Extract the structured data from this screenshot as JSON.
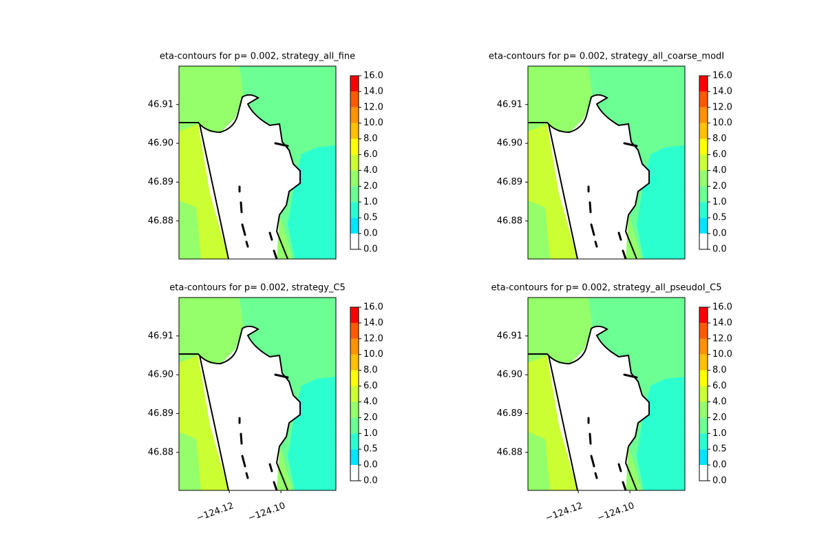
{
  "chart_data": [
    {
      "type": "contour",
      "title": "eta-contours for p= 0.002, strategy_all_fine",
      "xlim": [
        -124.1395,
        -124.0787
      ],
      "ylim": [
        46.8702,
        46.9199
      ],
      "yticks": [
        46.88,
        46.89,
        {
          "value": 46.9,
          "label": "46.90"
        },
        46.91
      ],
      "colorbar_ticks": [
        {
          "value": 0,
          "label": "0.0"
        },
        {
          "value": 0,
          "label": "0.0"
        },
        0.5,
        {
          "value": 1,
          "label": "1.0"
        },
        {
          "value": 2,
          "label": "2.0"
        },
        {
          "value": 4,
          "label": "4.0"
        },
        {
          "value": 6,
          "label": "6.0"
        },
        {
          "value": 8,
          "label": "8.0"
        },
        {
          "value": 10,
          "label": "10.0"
        },
        {
          "value": 12,
          "label": "12.0"
        },
        {
          "value": 14,
          "label": "14.0"
        },
        {
          "value": 16,
          "label": "16.0"
        }
      ],
      "colorbar_colors": [
        "#ffffff",
        "#00e5ff",
        "#2bffd0",
        "#6bff94",
        "#94ff6b",
        "#ccff33",
        "#ffff00",
        "#ffc000",
        "#ff9200",
        "#ff5a00",
        "#ff0000"
      ]
    },
    {
      "type": "contour",
      "title": "eta-contours for p= 0.002, strategy_all_coarse_modI",
      "xlim": [
        -124.1395,
        -124.0787
      ],
      "ylim": [
        46.8702,
        46.9199
      ],
      "yticks": [
        46.88,
        46.89,
        {
          "value": 46.9,
          "label": "46.90"
        },
        46.91
      ],
      "colorbar_ticks": [
        {
          "value": 0,
          "label": "0.0"
        },
        {
          "value": 0,
          "label": "0.0"
        },
        0.5,
        {
          "value": 1,
          "label": "1.0"
        },
        {
          "value": 2,
          "label": "2.0"
        },
        {
          "value": 4,
          "label": "4.0"
        },
        {
          "value": 6,
          "label": "6.0"
        },
        {
          "value": 8,
          "label": "8.0"
        },
        {
          "value": 10,
          "label": "10.0"
        },
        {
          "value": 12,
          "label": "12.0"
        },
        {
          "value": 14,
          "label": "14.0"
        },
        {
          "value": 16,
          "label": "16.0"
        }
      ],
      "colorbar_colors": [
        "#ffffff",
        "#00e5ff",
        "#2bffd0",
        "#6bff94",
        "#94ff6b",
        "#ccff33",
        "#ffff00",
        "#ffc000",
        "#ff9200",
        "#ff5a00",
        "#ff0000"
      ]
    },
    {
      "type": "contour",
      "title": "eta-contours for p= 0.002, strategy_C5",
      "xlim": [
        -124.1395,
        -124.0787
      ],
      "ylim": [
        46.8702,
        46.9199
      ],
      "xticks": [
        {
          "value": -124.12,
          "label": "−124.12"
        },
        {
          "value": -124.1,
          "label": "−124.10"
        }
      ],
      "yticks": [
        46.88,
        46.89,
        {
          "value": 46.9,
          "label": "46.90"
        },
        46.91
      ],
      "colorbar_ticks": [
        {
          "value": 0,
          "label": "0.0"
        },
        {
          "value": 0,
          "label": "0.0"
        },
        0.5,
        {
          "value": 1,
          "label": "1.0"
        },
        {
          "value": 2,
          "label": "2.0"
        },
        {
          "value": 4,
          "label": "4.0"
        },
        {
          "value": 6,
          "label": "6.0"
        },
        {
          "value": 8,
          "label": "8.0"
        },
        {
          "value": 10,
          "label": "10.0"
        },
        {
          "value": 12,
          "label": "12.0"
        },
        {
          "value": 14,
          "label": "14.0"
        },
        {
          "value": 16,
          "label": "16.0"
        }
      ],
      "colorbar_colors": [
        "#ffffff",
        "#00e5ff",
        "#2bffd0",
        "#6bff94",
        "#94ff6b",
        "#ccff33",
        "#ffff00",
        "#ffc000",
        "#ff9200",
        "#ff5a00",
        "#ff0000"
      ]
    },
    {
      "type": "contour",
      "title": "eta-contours for p= 0.002, strategy_all_pseudoI_C5",
      "xlim": [
        -124.1395,
        -124.0787
      ],
      "ylim": [
        46.8702,
        46.9199
      ],
      "xticks": [
        {
          "value": -124.12,
          "label": "−124.12"
        },
        {
          "value": -124.1,
          "label": "−124.10"
        }
      ],
      "yticks": [
        46.88,
        46.89,
        {
          "value": 46.9,
          "label": "46.90"
        },
        46.91
      ],
      "colorbar_ticks": [
        {
          "value": 0,
          "label": "0.0"
        },
        {
          "value": 0,
          "label": "0.0"
        },
        0.5,
        {
          "value": 1,
          "label": "1.0"
        },
        {
          "value": 2,
          "label": "2.0"
        },
        {
          "value": 4,
          "label": "4.0"
        },
        {
          "value": 6,
          "label": "6.0"
        },
        {
          "value": 8,
          "label": "8.0"
        },
        {
          "value": 10,
          "label": "10.0"
        },
        {
          "value": 12,
          "label": "12.0"
        },
        {
          "value": 14,
          "label": "14.0"
        },
        {
          "value": 16,
          "label": "16.0"
        }
      ],
      "colorbar_colors": [
        "#ffffff",
        "#00e5ff",
        "#2bffd0",
        "#6bff94",
        "#94ff6b",
        "#ccff33",
        "#ffff00",
        "#ffc000",
        "#ff9200",
        "#ff5a00",
        "#ff0000"
      ]
    }
  ]
}
